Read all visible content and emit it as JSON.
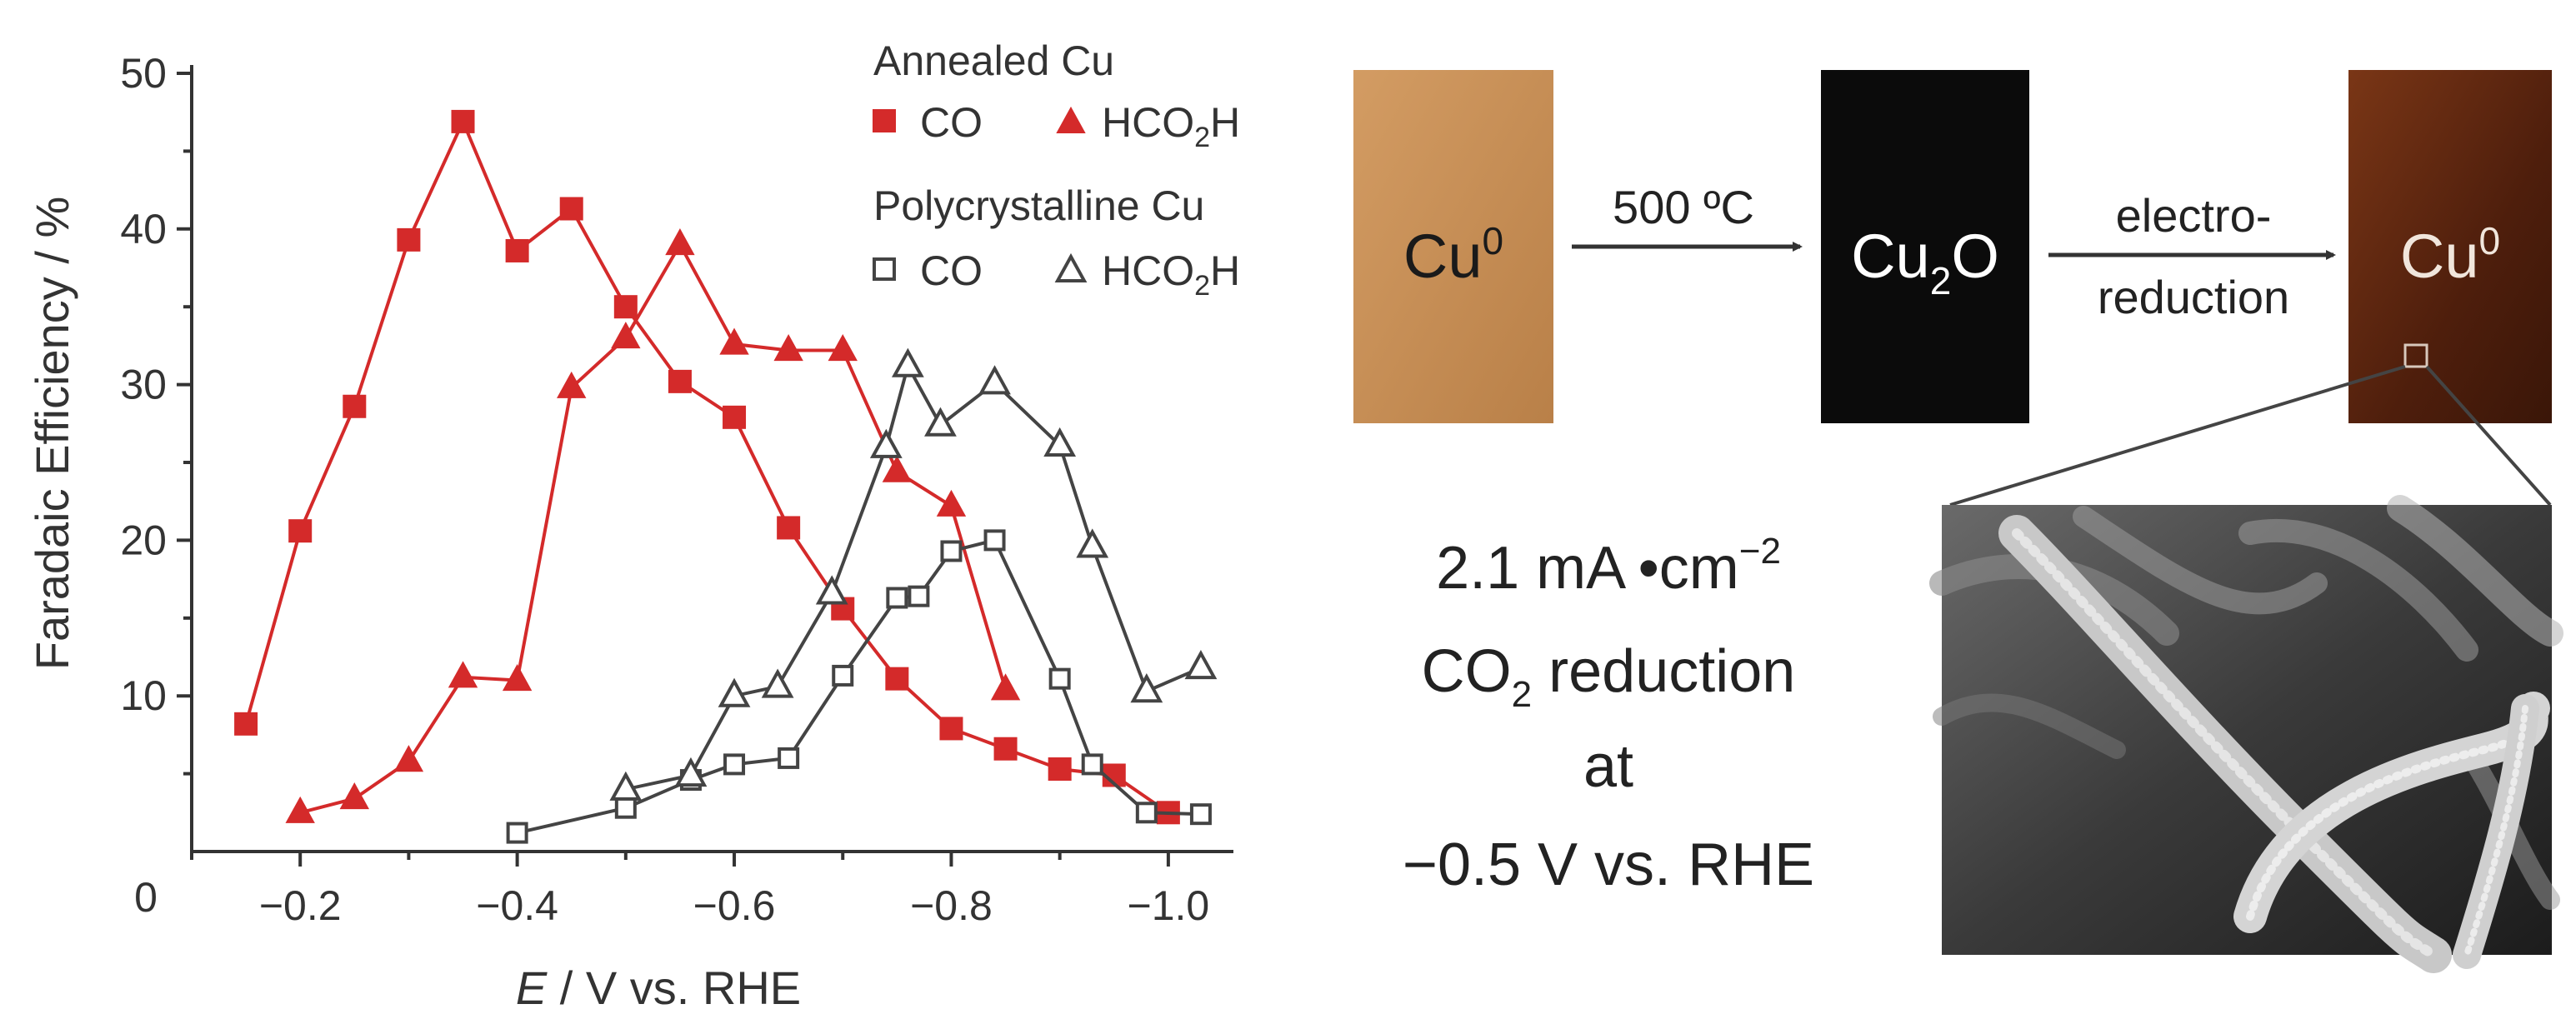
{
  "chart_data": {
    "type": "line",
    "xlabel_var": "E",
    "xlabel_rest": " / V vs. RHE",
    "ylabel": "Faradaic Efficiency / %",
    "xlim": [
      -0.1,
      -1.06
    ],
    "ylim": [
      0,
      50
    ],
    "x_ticks": [
      {
        "v": -0.2,
        "label": "−0.2"
      },
      {
        "v": -0.4,
        "label": "−0.4"
      },
      {
        "v": -0.6,
        "label": "−0.6"
      },
      {
        "v": -0.8,
        "label": "−0.8"
      },
      {
        "v": -1.0,
        "label": "−1.0"
      }
    ],
    "y_ticks": [
      {
        "v": 10,
        "label": "10"
      },
      {
        "v": 20,
        "label": "20"
      },
      {
        "v": 30,
        "label": "30"
      },
      {
        "v": 40,
        "label": "40"
      },
      {
        "v": 50,
        "label": "50"
      }
    ],
    "y_origin_label": "0",
    "legend": {
      "group1_title": "Annealed Cu",
      "group2_title": "Polycrystalline Cu",
      "co_label": "CO",
      "hcooh_main": "HCO",
      "hcooh_sub": "2",
      "hcooh_end": "H"
    },
    "series": [
      {
        "group": "Annealed Cu",
        "name": "CO",
        "marker": "square",
        "filled": true,
        "color": "#d42a2a",
        "x": [
          -0.15,
          -0.2,
          -0.25,
          -0.3,
          -0.35,
          -0.4,
          -0.45,
          -0.5,
          -0.55,
          -0.6,
          -0.65,
          -0.7,
          -0.75,
          -0.8,
          -0.85,
          -0.9,
          -0.95,
          -1.0
        ],
        "y": [
          8.2,
          20.6,
          28.6,
          39.3,
          46.9,
          38.6,
          41.3,
          35.0,
          30.2,
          27.9,
          20.8,
          15.6,
          11.1,
          7.9,
          6.6,
          5.3,
          4.9,
          2.5
        ]
      },
      {
        "group": "Annealed Cu",
        "name": "HCO2H",
        "marker": "triangle",
        "filled": true,
        "color": "#d42a2a",
        "x": [
          -0.2,
          -0.25,
          -0.3,
          -0.35,
          -0.4,
          -0.45,
          -0.5,
          -0.55,
          -0.6,
          -0.65,
          -0.7,
          -0.75,
          -0.8,
          -0.85
        ],
        "y": [
          2.5,
          3.4,
          5.8,
          11.2,
          11.0,
          29.8,
          33.0,
          39.0,
          32.6,
          32.2,
          32.2,
          24.4,
          22.2,
          10.4
        ]
      },
      {
        "group": "Polycrystalline Cu",
        "name": "CO",
        "marker": "square",
        "filled": false,
        "color": "#444444",
        "x": [
          -0.4,
          -0.5,
          -0.56,
          -0.6,
          -0.65,
          -0.7,
          -0.75,
          -0.77,
          -0.8,
          -0.84,
          -0.9,
          -0.93,
          -0.98,
          -1.03
        ],
        "y": [
          1.2,
          2.8,
          4.6,
          5.6,
          6.0,
          11.3,
          16.3,
          16.4,
          19.3,
          20.0,
          11.1,
          5.6,
          2.5,
          2.4
        ]
      },
      {
        "group": "Polycrystalline Cu",
        "name": "HCO2H",
        "marker": "triangle",
        "filled": false,
        "color": "#444444",
        "x": [
          -0.5,
          -0.56,
          -0.6,
          -0.64,
          -0.69,
          -0.74,
          -0.76,
          -0.79,
          -0.84,
          -0.9,
          -0.93,
          -0.98,
          -1.03
        ],
        "y": [
          4.0,
          4.9,
          10.0,
          10.6,
          16.6,
          26.0,
          31.2,
          27.4,
          30.1,
          26.1,
          19.6,
          10.3,
          11.8
        ]
      }
    ]
  },
  "scheme": {
    "sample1": {
      "main": "Cu",
      "sup": "0",
      "color": "#c9915a"
    },
    "sample2": {
      "main": "Cu",
      "sub": "2",
      "end": "O",
      "color": "#0a0a0a"
    },
    "sample3": {
      "main": "Cu",
      "sup": "0",
      "color": "#5a2510"
    },
    "step1": {
      "label": "500 ºC"
    },
    "step2": {
      "line1": "electro-",
      "line2": "reduction"
    },
    "conditions": {
      "line1": "2.1 mA •cm",
      "line1_sup": "−2",
      "line2_main": "CO",
      "line2_sub": "2",
      "line2_end": " reduction",
      "line3": "at",
      "line4": "−0.5 V vs. RHE"
    }
  }
}
